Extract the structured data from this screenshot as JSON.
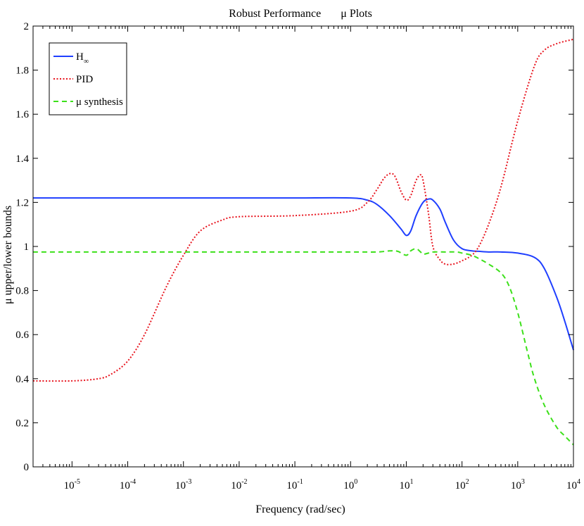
{
  "chart_data": {
    "type": "line",
    "title": "Robust Performance       μ Plots",
    "xlabel": "Frequency (rad/sec)",
    "ylabel": "μ upper/lower bounds",
    "xscale": "log",
    "xlim": [
      2e-06,
      10000
    ],
    "ylim": [
      0,
      2
    ],
    "x_ticks": [
      {
        "base": "10",
        "exp": "-5"
      },
      {
        "base": "10",
        "exp": "-4"
      },
      {
        "base": "10",
        "exp": "-3"
      },
      {
        "base": "10",
        "exp": "-2"
      },
      {
        "base": "10",
        "exp": "-1"
      },
      {
        "base": "10",
        "exp": "0"
      },
      {
        "base": "10",
        "exp": "1"
      },
      {
        "base": "10",
        "exp": "2"
      },
      {
        "base": "10",
        "exp": "3"
      },
      {
        "base": "10",
        "exp": "4"
      }
    ],
    "y_ticks": [
      "0",
      "0.2",
      "0.4",
      "0.6",
      "0.8",
      "1",
      "1.2",
      "1.4",
      "1.6",
      "1.8",
      "2"
    ],
    "grid": false,
    "legend_position": "top-left",
    "series": [
      {
        "name": "H",
        "name_subscript": "∞",
        "color": "#1f3fff",
        "style": "solid",
        "x": [
          2e-06,
          1e-05,
          0.0001,
          0.001,
          0.01,
          0.1,
          1,
          2,
          3,
          5,
          8,
          10,
          12,
          15,
          20,
          25,
          30,
          40,
          50,
          70,
          100,
          150,
          200,
          300,
          500,
          1000,
          2000,
          3000,
          5000,
          7000,
          10000
        ],
        "y": [
          1.22,
          1.22,
          1.22,
          1.22,
          1.22,
          1.22,
          1.22,
          1.21,
          1.19,
          1.14,
          1.08,
          1.05,
          1.07,
          1.14,
          1.2,
          1.215,
          1.21,
          1.17,
          1.11,
          1.03,
          0.99,
          0.98,
          0.978,
          0.975,
          0.975,
          0.97,
          0.95,
          0.9,
          0.77,
          0.66,
          0.53
        ]
      },
      {
        "name": "PID",
        "color": "#e8141e",
        "style": "dotted",
        "x": [
          2e-06,
          1e-05,
          3e-05,
          5e-05,
          0.0001,
          0.0002,
          0.0005,
          0.001,
          0.002,
          0.005,
          0.01,
          0.1,
          1,
          2,
          3,
          4,
          5,
          6,
          7,
          8,
          10,
          12,
          15,
          18,
          20,
          25,
          30,
          40,
          50,
          70,
          100,
          150,
          200,
          300,
          500,
          1000,
          2000,
          3000,
          5000,
          10000
        ],
        "y": [
          0.39,
          0.39,
          0.4,
          0.42,
          0.48,
          0.6,
          0.82,
          0.96,
          1.07,
          1.12,
          1.135,
          1.14,
          1.16,
          1.2,
          1.26,
          1.31,
          1.33,
          1.325,
          1.29,
          1.25,
          1.21,
          1.23,
          1.3,
          1.325,
          1.3,
          1.15,
          1.0,
          0.94,
          0.92,
          0.92,
          0.935,
          0.96,
          1.0,
          1.1,
          1.27,
          1.57,
          1.82,
          1.89,
          1.92,
          1.94
        ]
      },
      {
        "name": "μ synthesis",
        "color": "#3ce01a",
        "style": "dashed",
        "x": [
          2e-06,
          1e-05,
          0.0001,
          0.001,
          0.01,
          0.1,
          1,
          3,
          5,
          7,
          10,
          12,
          15,
          18,
          20,
          25,
          30,
          50,
          80,
          100,
          150,
          200,
          300,
          500,
          700,
          1000,
          1500,
          2000,
          3000,
          5000,
          7000,
          10000
        ],
        "y": [
          0.975,
          0.975,
          0.975,
          0.975,
          0.975,
          0.975,
          0.975,
          0.975,
          0.98,
          0.978,
          0.96,
          0.98,
          0.99,
          0.975,
          0.965,
          0.97,
          0.975,
          0.975,
          0.975,
          0.97,
          0.96,
          0.945,
          0.92,
          0.88,
          0.82,
          0.7,
          0.52,
          0.4,
          0.28,
          0.18,
          0.14,
          0.1
        ]
      }
    ]
  }
}
